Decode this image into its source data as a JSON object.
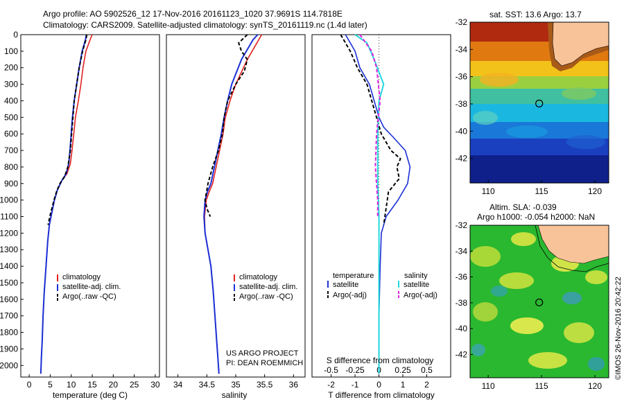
{
  "header": {
    "line1": "Argo profile: AO 5902526_12 17-Nov-2016 20161123_1020 37.9691S 114.7818E",
    "line2": "Climatology: CARS2009. Satellite-adjusted climatology: synTS_20161119.nc (1.4d later)"
  },
  "colors": {
    "climatology": "#e02020",
    "satellite": "#1a2fd6",
    "argo": "#000000",
    "salinity_satellite": "#22d8dc",
    "salinity_argo": "#e020e0",
    "land": "#f9c39a"
  },
  "project_note": {
    "line1": "US ARGO PROJECT",
    "line2": "PI: DEAN ROEMMICH"
  },
  "legend_profiles": [
    "climatology",
    "satellite-adj. clim.",
    "Argo(..raw -QC)"
  ],
  "legend_diff": {
    "temperature_title": "temperature",
    "salinity_title": "salinity",
    "temp_sat": "satellite",
    "temp_argo": "Argo(-adj)",
    "sal_sat": "satellite",
    "sal_argo": "Argo(-adj)"
  },
  "maps": {
    "sst_title": "sat. SST: 13.6 Argo: 13.7",
    "sla_title_1": "Altim. SLA: -0.039",
    "sla_title_2": "Argo h1000: -0.054 h2000: NaN",
    "lat_ticks": [
      "-32",
      "-34",
      "-36",
      "-38",
      "-40",
      "-42"
    ],
    "lon_ticks": [
      "110",
      "115",
      "120"
    ],
    "float_position": {
      "lon": 114.78,
      "lat": -37.97
    }
  },
  "side_stamp": "©IMOS 26-Nov-2016 20:42:22",
  "chart_data": [
    {
      "type": "line",
      "xlabel": "temperature (deg C)",
      "ylabel": "",
      "xlim": [
        -2,
        31
      ],
      "ylim": [
        2070,
        0
      ],
      "x_ticks": [
        0,
        5,
        10,
        15,
        20,
        25,
        30
      ],
      "y_ticks": [
        0,
        100,
        200,
        300,
        400,
        500,
        600,
        700,
        800,
        900,
        1000,
        1100,
        1200,
        1300,
        1400,
        1500,
        1600,
        1700,
        1800,
        1900,
        2000
      ],
      "series": [
        {
          "name": "climatology",
          "x": [
            15.0,
            14.5,
            13.5,
            12.8,
            12.3,
            11.7,
            11.0,
            10.6,
            10.2,
            9.8,
            9.0,
            7.8,
            6.7,
            6.0,
            5.5,
            4.8,
            4.4,
            4.0,
            3.6,
            3.3,
            3.1,
            2.9,
            2.8,
            2.75
          ],
          "y": [
            0,
            30,
            100,
            200,
            300,
            400,
            500,
            600,
            700,
            780,
            840,
            880,
            940,
            1000,
            1060,
            1150,
            1250,
            1400,
            1550,
            1700,
            1850,
            1950,
            2020,
            2050
          ]
        },
        {
          "name": "satellite-adj. clim.",
          "x": [
            13.6,
            13.4,
            12.6,
            11.9,
            11.3,
            10.7,
            10.3,
            10.0,
            9.7,
            9.4,
            8.8,
            7.8,
            6.7,
            6.0,
            5.5,
            4.8,
            4.4,
            4.0,
            3.6,
            3.3,
            3.1,
            2.9,
            2.8,
            2.75
          ],
          "y": [
            0,
            30,
            100,
            200,
            300,
            400,
            500,
            600,
            700,
            780,
            840,
            880,
            940,
            1000,
            1060,
            1150,
            1250,
            1400,
            1550,
            1700,
            1850,
            1950,
            2020,
            2050
          ]
        },
        {
          "name": "Argo(..raw -QC)",
          "x": [
            13.7,
            13.5,
            12.7,
            11.9,
            11.3,
            10.7,
            10.4,
            10.1,
            9.8,
            9.2,
            8.4,
            7.3,
            6.5,
            5.9,
            5.4,
            4.9,
            4.5
          ],
          "y": [
            0,
            30,
            100,
            200,
            300,
            400,
            500,
            600,
            700,
            800,
            860,
            900,
            950,
            1000,
            1050,
            1100,
            1150
          ]
        }
      ]
    },
    {
      "type": "line",
      "xlabel": "salinity",
      "ylabel": "",
      "xlim": [
        33.8,
        36.2
      ],
      "ylim": [
        2070,
        0
      ],
      "x_ticks": [
        34,
        34.5,
        35,
        35.5,
        36
      ],
      "x_tick_labels": [
        "34",
        "34.5",
        "35",
        "35.5",
        "36"
      ],
      "series": [
        {
          "name": "climatology",
          "x": [
            35.45,
            35.4,
            35.2,
            35.0,
            34.9,
            34.82,
            34.78,
            34.72,
            34.66,
            34.6,
            34.54,
            34.49,
            34.46,
            34.47,
            34.52,
            34.57,
            34.61,
            34.64,
            34.67,
            34.69,
            34.71
          ],
          "y": [
            0,
            30,
            150,
            300,
            400,
            500,
            600,
            700,
            800,
            900,
            950,
            1000,
            1100,
            1200,
            1300,
            1400,
            1550,
            1700,
            1850,
            1950,
            2050
          ]
        },
        {
          "name": "satellite-adj. clim.",
          "x": [
            35.38,
            35.3,
            35.1,
            34.93,
            34.86,
            34.8,
            34.75,
            34.69,
            34.63,
            34.57,
            34.51,
            34.47,
            34.45,
            34.47,
            34.52,
            34.57,
            34.61,
            34.64,
            34.67,
            34.69,
            34.71
          ],
          "y": [
            0,
            30,
            150,
            300,
            400,
            500,
            600,
            700,
            800,
            900,
            950,
            1000,
            1100,
            1200,
            1300,
            1400,
            1550,
            1700,
            1850,
            1950,
            2050
          ]
        },
        {
          "name": "Argo(..raw -QC)",
          "x": [
            35.2,
            35.05,
            35.1,
            35.2,
            35.15,
            35.0,
            34.86,
            34.8,
            34.77,
            34.7,
            34.6,
            34.52,
            34.47,
            34.5,
            34.56
          ],
          "y": [
            0,
            50,
            100,
            150,
            220,
            300,
            400,
            500,
            600,
            700,
            800,
            900,
            1000,
            1050,
            1100
          ]
        }
      ]
    },
    {
      "type": "line",
      "xlabel": "T difference from climatology",
      "secondary_xlabel": "S difference from climatology",
      "xlim": [
        -2.8,
        3.0
      ],
      "ylim": [
        2070,
        0
      ],
      "x_ticks": [
        -2,
        -1,
        0,
        1,
        2
      ],
      "secondary_x_ticks": [
        -0.5,
        -0.25,
        0,
        0.25,
        0.5
      ],
      "secondary_x_tick_labels": [
        "-0.5",
        "-0.25",
        "0",
        "0.25",
        "0.5"
      ],
      "series": [
        {
          "name": "temperature satellite",
          "x": [
            -1.4,
            -1.0,
            -0.8,
            -0.4,
            -0.2,
            0.0,
            0.2,
            0.6,
            1.1,
            1.3,
            1.2,
            0.8,
            0.3,
            0.1,
            0.05,
            0.0,
            0.0
          ],
          "y": [
            0,
            100,
            200,
            300,
            400,
            500,
            560,
            620,
            700,
            800,
            900,
            1000,
            1100,
            1200,
            1400,
            1700,
            2050
          ]
        },
        {
          "name": "temperature Argo(-adj)",
          "x": [
            -1.6,
            -1.2,
            -0.9,
            -0.5,
            -0.3,
            -0.1,
            0.1,
            0.5,
            0.9,
            0.75,
            0.85,
            0.4,
            0.2
          ],
          "y": [
            0,
            100,
            200,
            300,
            400,
            500,
            600,
            700,
            750,
            800,
            870,
            950,
            1150
          ]
        },
        {
          "name": "salinity satellite",
          "x": [
            -1.0,
            -0.5,
            -0.2,
            0.2,
            0.0,
            -0.05,
            -0.05,
            0.0,
            0.0,
            0.0,
            0.0
          ],
          "y": [
            0,
            50,
            150,
            300,
            400,
            600,
            900,
            1100,
            1400,
            1700,
            2050
          ]
        },
        {
          "name": "salinity Argo(-adj)",
          "x": [
            -0.8,
            -0.3,
            -0.1,
            0.05,
            -0.1,
            -0.15,
            -0.1,
            -0.05,
            -0.05
          ],
          "y": [
            0,
            100,
            200,
            400,
            600,
            800,
            900,
            1000,
            1100
          ]
        }
      ]
    }
  ]
}
